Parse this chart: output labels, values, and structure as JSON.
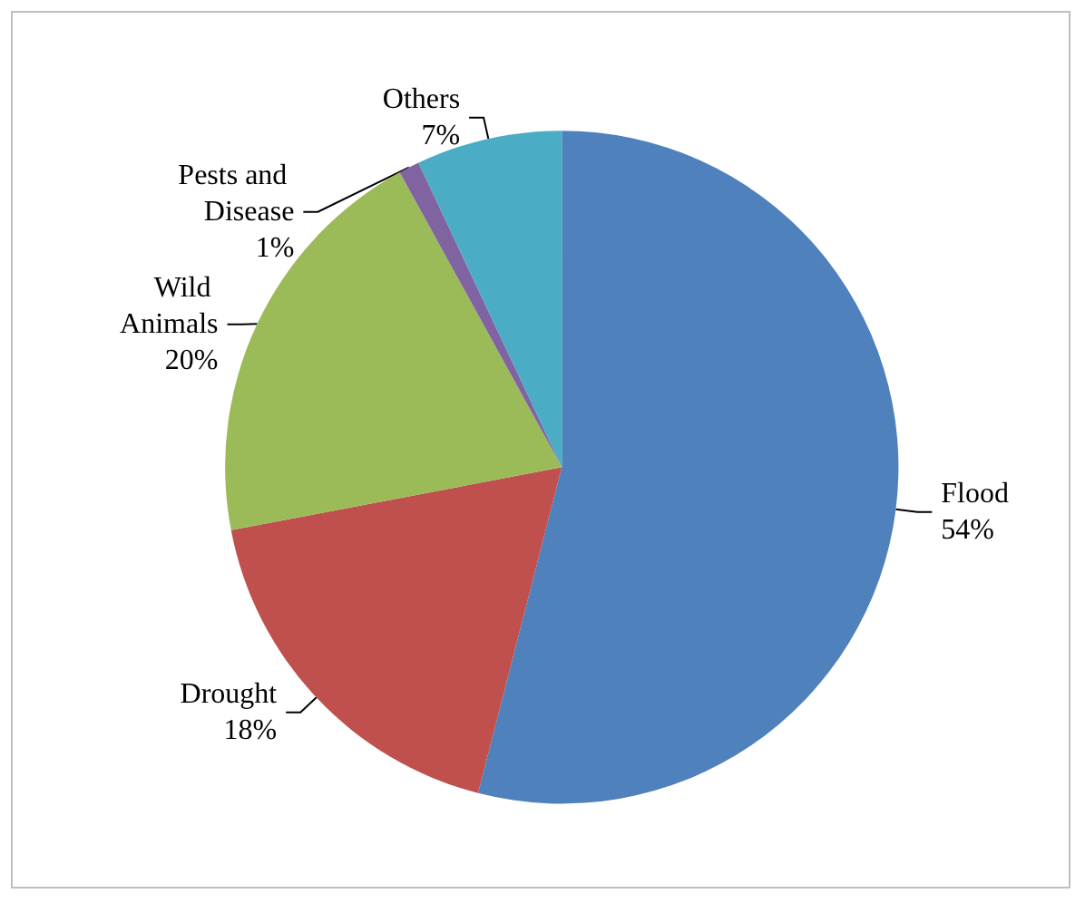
{
  "chart_data": {
    "type": "pie",
    "categories": [
      "Flood",
      "Drought",
      "Wild Animals",
      "Pests and Disease",
      "Others"
    ],
    "values": [
      54,
      18,
      20,
      1,
      7
    ],
    "value_labels": [
      "54%",
      "18%",
      "20%",
      "1%",
      "7%"
    ],
    "colors": [
      "#4f81bd",
      "#c0504d",
      "#9bbb59",
      "#8064a2",
      "#4bacc6"
    ],
    "legend": false
  }
}
